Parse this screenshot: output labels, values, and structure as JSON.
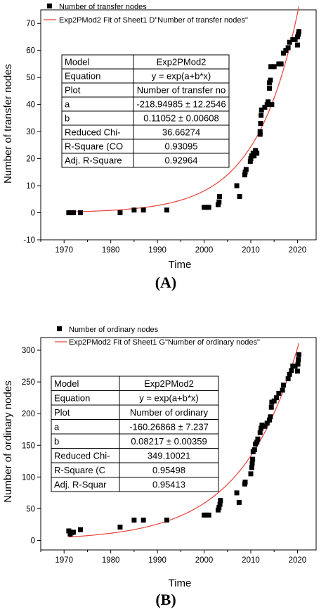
{
  "chart_data": [
    {
      "type": "scatter",
      "panel_label": "(A)",
      "xlabel": "Time",
      "ylabel": "Number of transfer nodes",
      "xlim": [
        1965,
        2024
      ],
      "ylim": [
        -10,
        75
      ],
      "xticks": [
        1970,
        1980,
        1990,
        2000,
        2010,
        2020
      ],
      "yticks": [
        -10,
        0,
        10,
        20,
        30,
        40,
        50,
        60,
        70
      ],
      "legend": {
        "position": "top-left",
        "points_label": "Number of transfer nodes",
        "fit_label": "Exp2PMod2 Fit of Sheet1 D\"Number of transfer nodes\""
      },
      "fit": {
        "a": -218.94985,
        "b": 0.11052,
        "color": "#e8413a"
      },
      "stats_table": [
        [
          "Model",
          "Exp2PMod2"
        ],
        [
          "Equation",
          "y = exp(a+b*x)"
        ],
        [
          "Plot",
          "Number of transfer no"
        ],
        [
          "a",
          "-218.94985 ± 12.2546"
        ],
        [
          "b",
          "0.11052 ± 0.00608"
        ],
        [
          "Reduced Chi-",
          "36.66274"
        ],
        [
          "R-Square (CO",
          "0.93095"
        ],
        [
          "Adj. R-Square",
          "0.92964"
        ]
      ],
      "points": [
        [
          1971,
          0
        ],
        [
          1971.5,
          0
        ],
        [
          1972,
          0
        ],
        [
          1973.5,
          0
        ],
        [
          1982,
          0
        ],
        [
          1985,
          1
        ],
        [
          1987,
          1
        ],
        [
          1992,
          1
        ],
        [
          2000,
          2
        ],
        [
          2000.5,
          2
        ],
        [
          2001,
          2
        ],
        [
          2003,
          3
        ],
        [
          2003.2,
          4
        ],
        [
          2003.3,
          6
        ],
        [
          2007,
          10
        ],
        [
          2007.6,
          6
        ],
        [
          2008.7,
          14
        ],
        [
          2008.8,
          15
        ],
        [
          2009,
          16
        ],
        [
          2009.9,
          19
        ],
        [
          2010,
          20
        ],
        [
          2010.2,
          21
        ],
        [
          2010.5,
          22
        ],
        [
          2010.7,
          21
        ],
        [
          2011,
          23
        ],
        [
          2011.3,
          22
        ],
        [
          2012,
          29
        ],
        [
          2012,
          30
        ],
        [
          2012.1,
          33
        ],
        [
          2012.2,
          36
        ],
        [
          2012.3,
          38
        ],
        [
          2013,
          39
        ],
        [
          2013.5,
          40
        ],
        [
          2013.7,
          41
        ],
        [
          2014,
          46
        ],
        [
          2014,
          48
        ],
        [
          2014.2,
          49
        ],
        [
          2014.3,
          54
        ],
        [
          2014.5,
          40
        ],
        [
          2015,
          54
        ],
        [
          2016,
          55
        ],
        [
          2016.5,
          55
        ],
        [
          2017,
          59
        ],
        [
          2017.5,
          60
        ],
        [
          2018,
          61
        ],
        [
          2018.3,
          63
        ],
        [
          2019,
          64
        ],
        [
          2019.5,
          64
        ],
        [
          2020,
          62
        ],
        [
          2020,
          65
        ],
        [
          2020.2,
          66
        ],
        [
          2020.3,
          67
        ]
      ]
    },
    {
      "type": "scatter",
      "panel_label": "(B)",
      "xlabel": "Time",
      "ylabel": "Number of ordinary nodes",
      "xlim": [
        1965,
        2024
      ],
      "ylim": [
        -15,
        320
      ],
      "xticks": [
        1970,
        1980,
        1990,
        2000,
        2010,
        2020
      ],
      "yticks": [
        0,
        50,
        100,
        150,
        200,
        250,
        300
      ],
      "legend": {
        "position": "top-left",
        "points_label": "Number of ordinary nodes",
        "fit_label": "Exp2PMod2 Fit of Sheet1 G\"Number of ordinary nodes\""
      },
      "fit": {
        "a": -160.26868,
        "b": 0.08217,
        "color": "#e8413a"
      },
      "stats_table": [
        [
          "Model",
          "Exp2PMod2"
        ],
        [
          "Equation",
          "y = exp(a+b*x)"
        ],
        [
          "Plot",
          "Number of ordinary"
        ],
        [
          "a",
          "-160.26868 ± 7.237"
        ],
        [
          "b",
          "0.08217 ± 0.00359"
        ],
        [
          "Reduced Chi-",
          "349.10021"
        ],
        [
          "R-Square (C",
          "0.95498"
        ],
        [
          "Adj. R-Squar",
          "0.95413"
        ]
      ],
      "points": [
        [
          1971,
          15
        ],
        [
          1971.3,
          10
        ],
        [
          1971.6,
          12
        ],
        [
          1972,
          13
        ],
        [
          1973.5,
          17
        ],
        [
          1982,
          21
        ],
        [
          1985,
          32
        ],
        [
          1987,
          32
        ],
        [
          1992,
          32
        ],
        [
          2000,
          40
        ],
        [
          2000.5,
          40
        ],
        [
          2001,
          40
        ],
        [
          2003,
          48
        ],
        [
          2003.2,
          52
        ],
        [
          2003.4,
          57
        ],
        [
          2003.5,
          63
        ],
        [
          2007,
          75
        ],
        [
          2007.5,
          60
        ],
        [
          2008.7,
          89
        ],
        [
          2008.8,
          92
        ],
        [
          2010,
          105
        ],
        [
          2010.2,
          115
        ],
        [
          2010.3,
          122
        ],
        [
          2010.4,
          128
        ],
        [
          2010.5,
          140
        ],
        [
          2010.8,
          143
        ],
        [
          2011,
          152
        ],
        [
          2011.3,
          155
        ],
        [
          2011.5,
          160
        ],
        [
          2012,
          170
        ],
        [
          2012.2,
          177
        ],
        [
          2012.4,
          182
        ],
        [
          2013,
          180
        ],
        [
          2013.5,
          185
        ],
        [
          2014,
          190
        ],
        [
          2014.2,
          195
        ],
        [
          2014.4,
          210
        ],
        [
          2014.5,
          218
        ],
        [
          2015,
          220
        ],
        [
          2015.5,
          225
        ],
        [
          2016,
          232
        ],
        [
          2016.8,
          237
        ],
        [
          2017,
          245
        ],
        [
          2018,
          255
        ],
        [
          2018.3,
          262
        ],
        [
          2018.7,
          268
        ],
        [
          2019,
          275
        ],
        [
          2019.5,
          275
        ],
        [
          2020,
          267
        ],
        [
          2020.1,
          278
        ],
        [
          2020.2,
          285
        ],
        [
          2020.3,
          293
        ]
      ]
    }
  ]
}
